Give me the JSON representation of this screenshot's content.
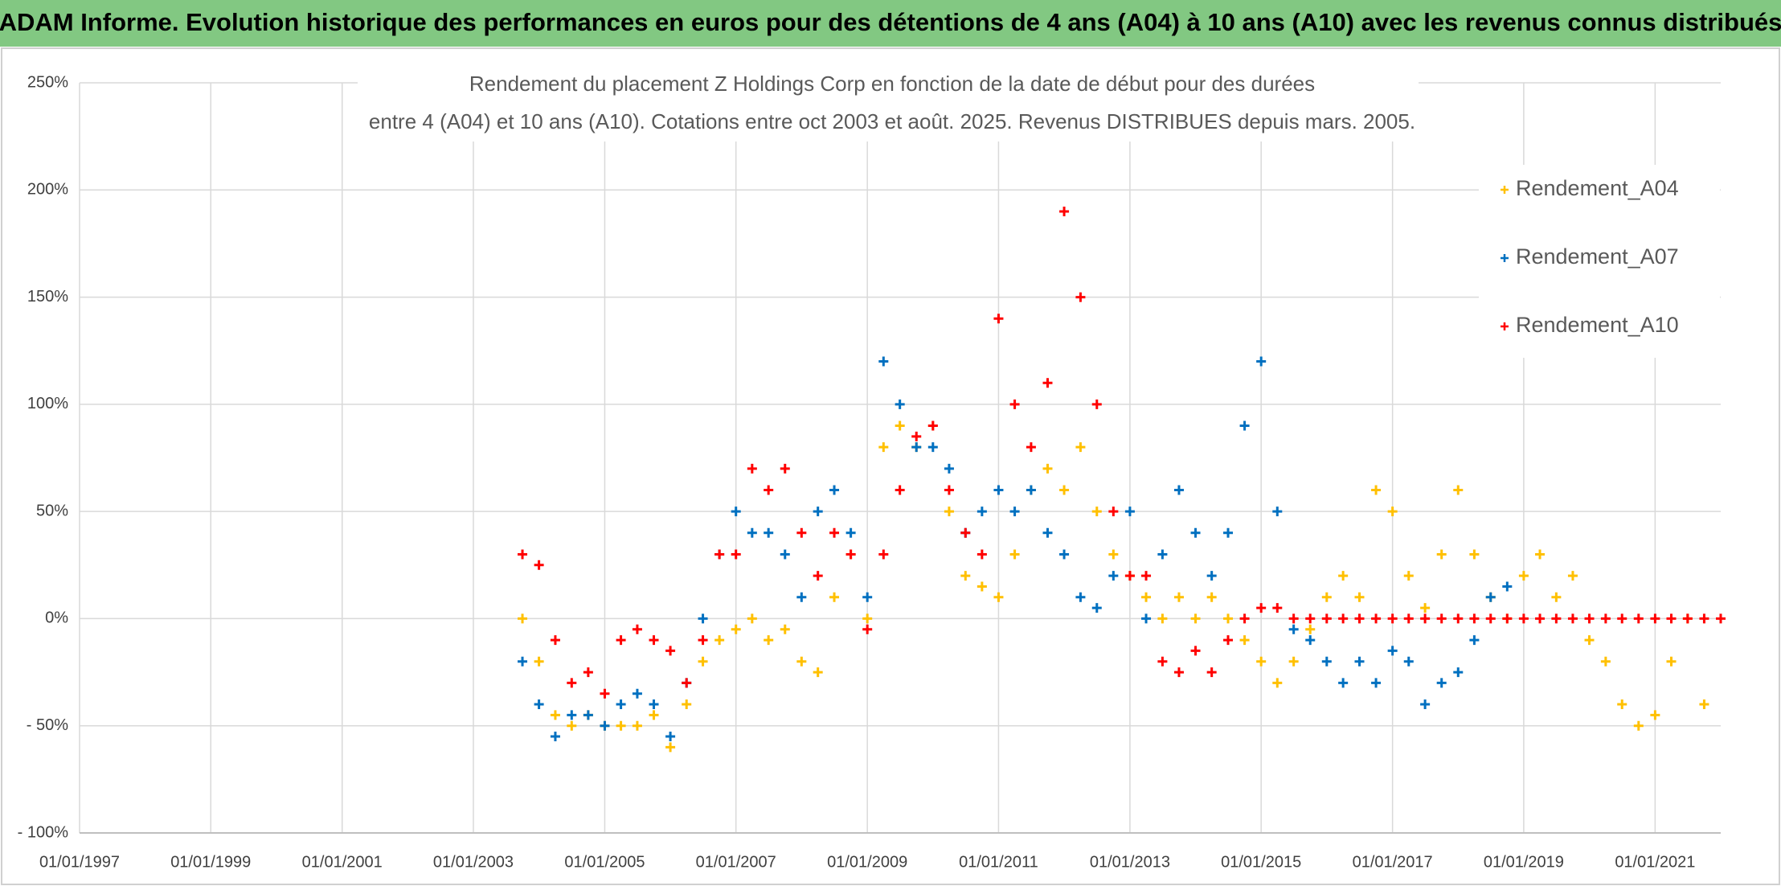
{
  "header": "ADAM Informe. Evolution historique des performances en euros pour des détentions de 4 ans (A04) à 10 ans (A10) avec les revenus connus distribués",
  "chart_data": {
    "type": "scatter",
    "title": [
      "Rendement du placement Z Holdings Corp en fonction de la date de début pour des durées",
      "entre 4 (A04) et 10 ans (A10). Cotations entre oct 2003 et août. 2025. Revenus DISTRIBUES depuis mars. 2005."
    ],
    "xlim": [
      "1997-01-01",
      "2022-01-01"
    ],
    "xticks": [
      {
        "value": "1997-01-01",
        "label": "01/01/1997"
      },
      {
        "value": "1999-01-01",
        "label": "01/01/1999"
      },
      {
        "value": "2001-01-01",
        "label": "01/01/2001"
      },
      {
        "value": "2003-01-01",
        "label": "01/01/2003"
      },
      {
        "value": "2005-01-01",
        "label": "01/01/2005"
      },
      {
        "value": "2007-01-01",
        "label": "01/01/2007"
      },
      {
        "value": "2009-01-01",
        "label": "01/01/2009"
      },
      {
        "value": "2011-01-01",
        "label": "01/01/2011"
      },
      {
        "value": "2013-01-01",
        "label": "01/01/2013"
      },
      {
        "value": "2015-01-01",
        "label": "01/01/2015"
      },
      {
        "value": "2017-01-01",
        "label": "01/01/2017"
      },
      {
        "value": "2019-01-01",
        "label": "01/01/2019"
      },
      {
        "value": "2021-01-01",
        "label": "01/01/2021"
      }
    ],
    "ylim": [
      -100,
      250
    ],
    "yticks": [
      {
        "value": -100,
        "label": "- 100%"
      },
      {
        "value": -50,
        "label": "- 50%"
      },
      {
        "value": 0,
        "label": "0%"
      },
      {
        "value": 50,
        "label": "50%"
      },
      {
        "value": 100,
        "label": "100%"
      },
      {
        "value": 150,
        "label": "150%"
      },
      {
        "value": 200,
        "label": "200%"
      },
      {
        "value": 250,
        "label": "250%"
      }
    ],
    "grid": true,
    "legend": "right",
    "series": [
      {
        "name": "Rendement_A04",
        "color": "#FFC000",
        "x": [
          "2003-10-01",
          "2004-01-01",
          "2004-04-01",
          "2004-07-01",
          "2004-10-01",
          "2005-01-01",
          "2005-04-01",
          "2005-07-01",
          "2005-10-01",
          "2006-01-01",
          "2006-04-01",
          "2006-07-01",
          "2006-10-01",
          "2007-01-01",
          "2007-04-01",
          "2007-07-01",
          "2007-10-01",
          "2008-01-01",
          "2008-04-01",
          "2008-07-01",
          "2008-10-01",
          "2009-01-01",
          "2009-04-01",
          "2009-07-01",
          "2009-10-01",
          "2010-01-01",
          "2010-04-01",
          "2010-07-01",
          "2010-10-01",
          "2011-01-01",
          "2011-04-01",
          "2011-07-01",
          "2011-10-01",
          "2012-01-01",
          "2012-04-01",
          "2012-07-01",
          "2012-10-01",
          "2013-01-01",
          "2013-04-01",
          "2013-07-01",
          "2013-10-01",
          "2014-01-01",
          "2014-04-01",
          "2014-07-01",
          "2014-10-01",
          "2015-01-01",
          "2015-04-01",
          "2015-07-01",
          "2015-10-01",
          "2016-01-01",
          "2016-04-01",
          "2016-07-01",
          "2016-10-01",
          "2017-01-01",
          "2017-04-01",
          "2017-07-01",
          "2017-10-01",
          "2018-01-01",
          "2018-04-01",
          "2018-07-01",
          "2018-10-01",
          "2019-01-01",
          "2019-04-01",
          "2019-07-01",
          "2019-10-01",
          "2020-01-01",
          "2020-04-01",
          "2020-07-01",
          "2020-10-01",
          "2021-01-01",
          "2021-04-01",
          "2021-07-01",
          "2021-10-01"
        ],
        "values": [
          0,
          -20,
          -45,
          -50,
          -45,
          -50,
          -50,
          -50,
          -45,
          -60,
          -40,
          -20,
          -10,
          -5,
          0,
          -10,
          -5,
          -20,
          -25,
          10,
          30,
          0,
          80,
          90,
          80,
          90,
          50,
          20,
          15,
          10,
          30,
          60,
          70,
          60,
          80,
          50,
          30,
          20,
          10,
          0,
          10,
          0,
          10,
          0,
          -10,
          -20,
          -30,
          -20,
          -5,
          10,
          20,
          10,
          60,
          50,
          20,
          5,
          30,
          60,
          30,
          10,
          0,
          20,
          30,
          10,
          20,
          -10,
          -20,
          -40,
          -50,
          -45,
          -20,
          0,
          -40
        ]
      },
      {
        "name": "Rendement_A07",
        "color": "#0070C0",
        "x": [
          "2003-10-01",
          "2004-01-01",
          "2004-04-01",
          "2004-07-01",
          "2004-10-01",
          "2005-01-01",
          "2005-04-01",
          "2005-07-01",
          "2005-10-01",
          "2006-01-01",
          "2006-04-01",
          "2006-07-01",
          "2006-10-01",
          "2007-01-01",
          "2007-04-01",
          "2007-07-01",
          "2007-10-01",
          "2008-01-01",
          "2008-04-01",
          "2008-07-01",
          "2008-10-01",
          "2009-01-01",
          "2009-04-01",
          "2009-07-01",
          "2009-10-01",
          "2010-01-01",
          "2010-04-01",
          "2010-07-01",
          "2010-10-01",
          "2011-01-01",
          "2011-04-01",
          "2011-07-01",
          "2011-10-01",
          "2012-01-01",
          "2012-04-01",
          "2012-07-01",
          "2012-10-01",
          "2013-01-01",
          "2013-04-01",
          "2013-07-01",
          "2013-10-01",
          "2014-01-01",
          "2014-04-01",
          "2014-07-01",
          "2014-10-01",
          "2015-01-01",
          "2015-04-01",
          "2015-07-01",
          "2015-10-01",
          "2016-01-01",
          "2016-04-01",
          "2016-07-01",
          "2016-10-01",
          "2017-01-01",
          "2017-04-01",
          "2017-07-01",
          "2017-10-01",
          "2018-01-01",
          "2018-04-01",
          "2018-07-01",
          "2018-10-01"
        ],
        "values": [
          -20,
          -40,
          -55,
          -45,
          -45,
          -50,
          -40,
          -35,
          -40,
          -55,
          -30,
          0,
          30,
          50,
          40,
          40,
          30,
          10,
          50,
          60,
          40,
          10,
          120,
          100,
          80,
          80,
          70,
          40,
          50,
          60,
          50,
          60,
          40,
          30,
          10,
          5,
          20,
          50,
          0,
          30,
          60,
          40,
          20,
          40,
          90,
          120,
          50,
          -5,
          -10,
          -20,
          -30,
          -20,
          -30,
          -15,
          -20,
          -40,
          -30,
          -25,
          -10,
          10,
          15
        ]
      },
      {
        "name": "Rendement_A10",
        "color": "#FF0000",
        "x": [
          "2003-10-01",
          "2004-01-01",
          "2004-04-01",
          "2004-07-01",
          "2004-10-01",
          "2005-01-01",
          "2005-04-01",
          "2005-07-01",
          "2005-10-01",
          "2006-01-01",
          "2006-04-01",
          "2006-07-01",
          "2006-10-01",
          "2007-01-01",
          "2007-04-01",
          "2007-07-01",
          "2007-10-01",
          "2008-01-01",
          "2008-04-01",
          "2008-07-01",
          "2008-10-01",
          "2009-01-01",
          "2009-04-01",
          "2009-07-01",
          "2009-10-01",
          "2010-01-01",
          "2010-04-01",
          "2010-07-01",
          "2010-10-01",
          "2011-01-01",
          "2011-04-01",
          "2011-07-01",
          "2011-10-01",
          "2012-01-01",
          "2012-04-01",
          "2012-07-01",
          "2012-10-01",
          "2013-01-01",
          "2013-04-01",
          "2013-07-01",
          "2013-10-01",
          "2014-01-01",
          "2014-04-01",
          "2014-07-01",
          "2014-10-01",
          "2015-01-01",
          "2015-04-01",
          "2015-07-01",
          "2015-10-01",
          "2016-01-01",
          "2016-04-01",
          "2016-07-01",
          "2016-10-01",
          "2017-01-01",
          "2017-04-01",
          "2017-07-01",
          "2017-10-01",
          "2018-01-01",
          "2018-04-01",
          "2018-07-01",
          "2018-10-01",
          "2019-01-01",
          "2019-04-01",
          "2019-07-01",
          "2019-10-01",
          "2020-01-01",
          "2020-04-01",
          "2020-07-01",
          "2020-10-01",
          "2021-01-01",
          "2021-04-01",
          "2021-07-01",
          "2021-10-01",
          "2022-01-01"
        ],
        "values": [
          30,
          25,
          -10,
          -30,
          -25,
          -35,
          -10,
          -5,
          -10,
          -15,
          -30,
          -10,
          30,
          30,
          70,
          60,
          70,
          40,
          20,
          40,
          30,
          -5,
          30,
          60,
          85,
          90,
          60,
          40,
          30,
          140,
          100,
          80,
          110,
          190,
          150,
          100,
          50,
          20,
          20,
          -20,
          -25,
          -15,
          -25,
          -10,
          0,
          5,
          5,
          0,
          0,
          0,
          0,
          0,
          0,
          0,
          0,
          0,
          0,
          0,
          0,
          0,
          0,
          0,
          0,
          0,
          0,
          0,
          0,
          0,
          0,
          0,
          0,
          0,
          0,
          0
        ]
      }
    ]
  }
}
